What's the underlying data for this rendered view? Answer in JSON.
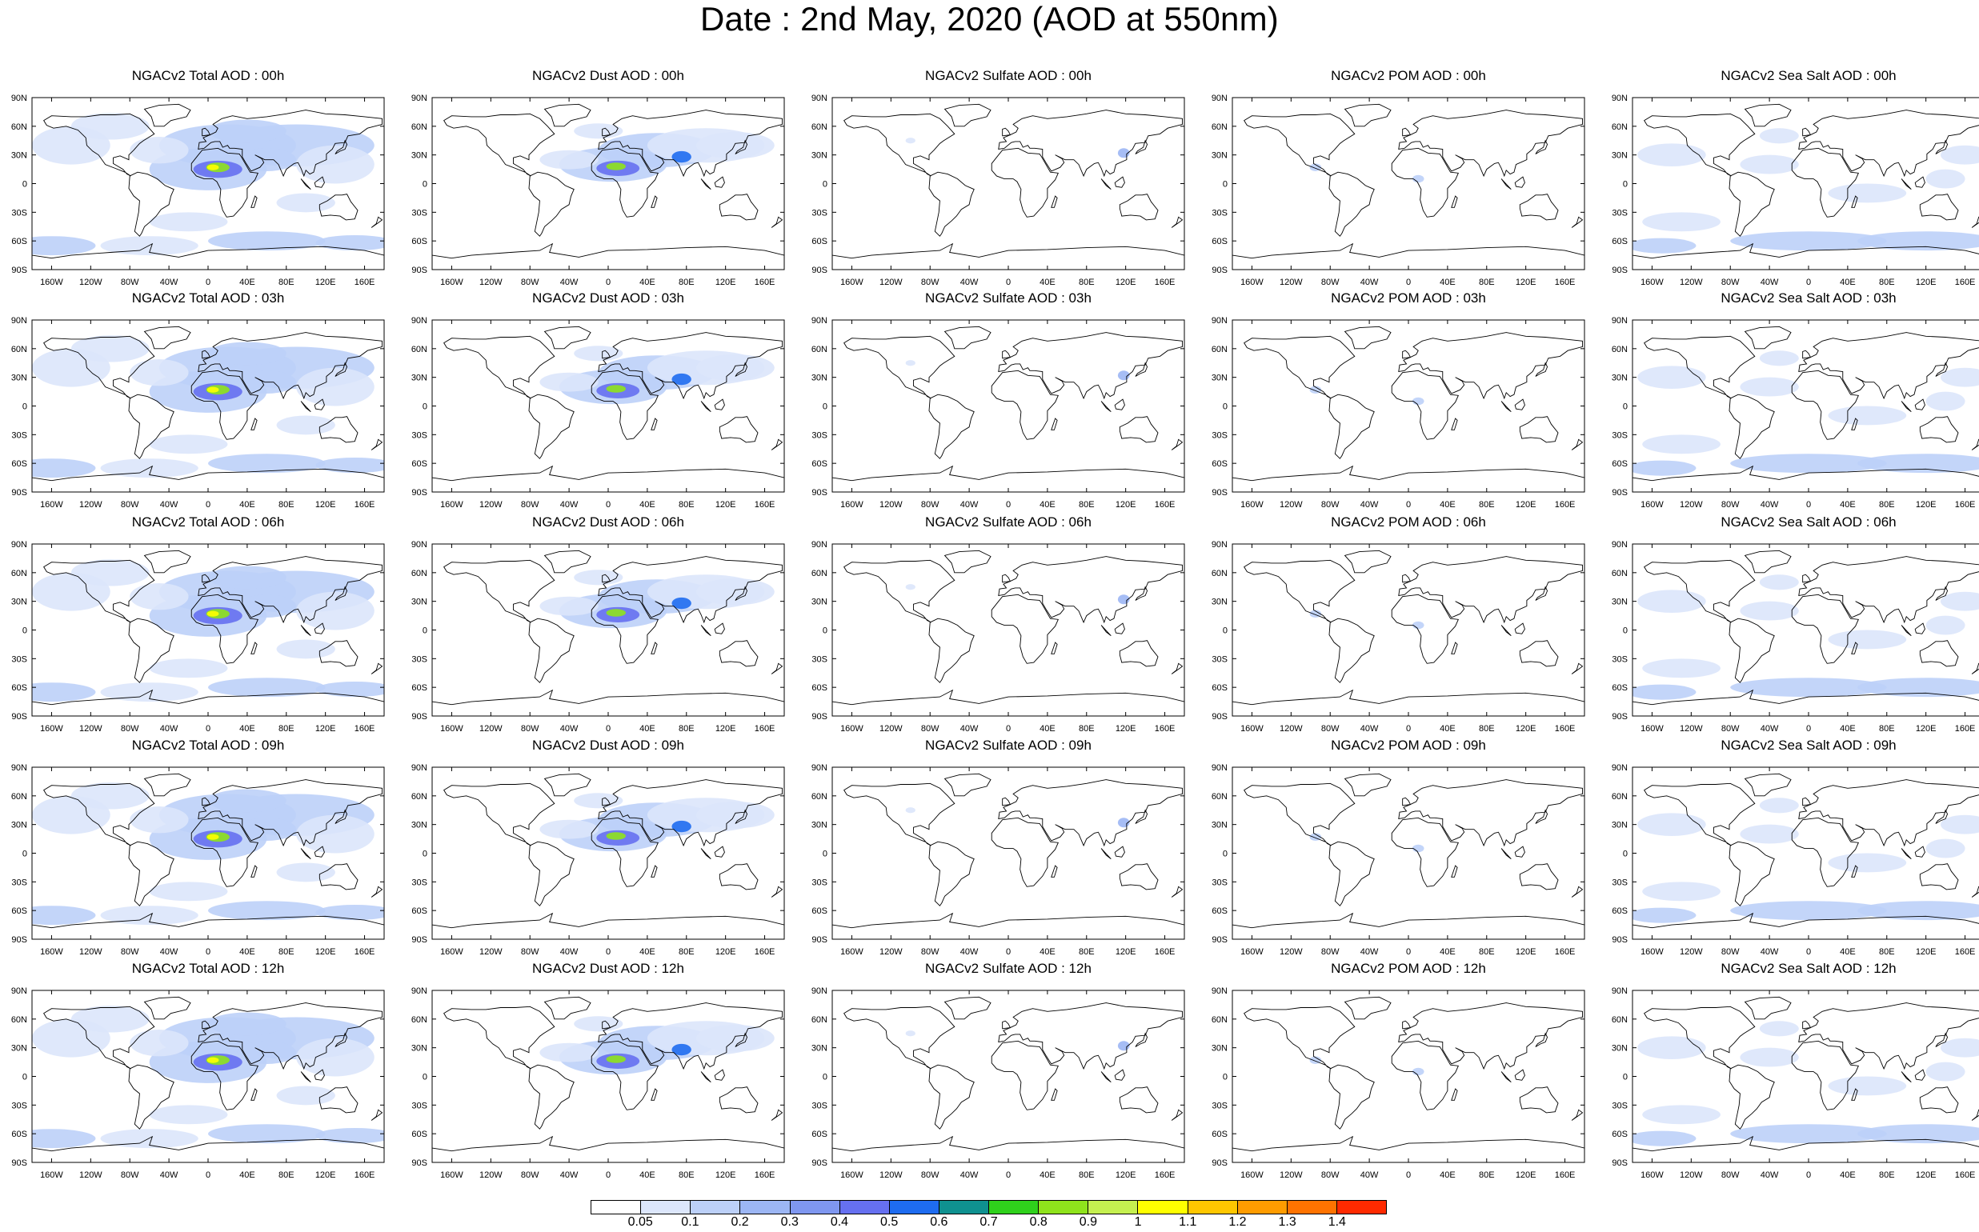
{
  "title": "Date : 2nd May, 2020 (AOD at 550nm)",
  "axes": {
    "lat_labels": [
      "90N",
      "60N",
      "30N",
      "0",
      "30S",
      "60S",
      "90S"
    ],
    "lon_labels": [
      "160W",
      "120W",
      "80W",
      "40W",
      "0",
      "40E",
      "80E",
      "120E",
      "160E"
    ]
  },
  "panels": [
    [
      {
        "title": "NGACv2 Total AOD : 00h",
        "species": "total"
      },
      {
        "title": "NGACv2 Dust AOD : 00h",
        "species": "dust"
      },
      {
        "title": "NGACv2 Sulfate AOD : 00h",
        "species": "sulfate"
      },
      {
        "title": "NGACv2 POM AOD : 00h",
        "species": "pom"
      },
      {
        "title": "NGACv2 Sea Salt AOD : 00h",
        "species": "seasalt"
      }
    ],
    [
      {
        "title": "NGACv2 Total AOD : 03h",
        "species": "total"
      },
      {
        "title": "NGACv2 Dust AOD : 03h",
        "species": "dust"
      },
      {
        "title": "NGACv2 Sulfate AOD : 03h",
        "species": "sulfate"
      },
      {
        "title": "NGACv2 POM AOD : 03h",
        "species": "pom"
      },
      {
        "title": "NGACv2 Sea Salt AOD : 03h",
        "species": "seasalt"
      }
    ],
    [
      {
        "title": "NGACv2 Total AOD : 06h",
        "species": "total"
      },
      {
        "title": "NGACv2 Dust AOD : 06h",
        "species": "dust"
      },
      {
        "title": "NGACv2 Sulfate AOD : 06h",
        "species": "sulfate"
      },
      {
        "title": "NGACv2 POM AOD : 06h",
        "species": "pom"
      },
      {
        "title": "NGACv2 Sea Salt AOD : 06h",
        "species": "seasalt"
      }
    ],
    [
      {
        "title": "NGACv2 Total AOD : 09h",
        "species": "total"
      },
      {
        "title": "NGACv2 Dust AOD : 09h",
        "species": "dust"
      },
      {
        "title": "NGACv2 Sulfate AOD : 09h",
        "species": "sulfate"
      },
      {
        "title": "NGACv2 POM AOD : 09h",
        "species": "pom"
      },
      {
        "title": "NGACv2 Sea Salt  AOD : 09h",
        "species": "seasalt"
      }
    ],
    [
      {
        "title": "NGACv2 Total AOD : 12h",
        "species": "total"
      },
      {
        "title": "NGACv2 Dust AOD : 12h",
        "species": "dust"
      },
      {
        "title": "NGACv2 Sulfate AOD : 12h",
        "species": "sulfate"
      },
      {
        "title": "NGACv2 POM  AOD : 12h",
        "species": "pom"
      },
      {
        "title": "NGACv2 Sea Salt  AOD : 12h",
        "species": "seasalt"
      }
    ]
  ],
  "colorbar": {
    "labels": [
      "0.05",
      "0.1",
      "0.2",
      "0.3",
      "0.4",
      "0.5",
      "0.6",
      "0.7",
      "0.8",
      "0.9",
      "1",
      "1.1",
      "1.2",
      "1.3",
      "1.4"
    ],
    "colors": [
      "#ffffff",
      "#dce6fb",
      "#bcd0f8",
      "#9cb6f4",
      "#7f97f0",
      "#6670f0",
      "#1e6cf0",
      "#0f9190",
      "#2fd11c",
      "#8fe31c",
      "#c5f050",
      "#ffff00",
      "#ffc700",
      "#ff9c00",
      "#ff7300",
      "#ff2a00"
    ]
  }
}
